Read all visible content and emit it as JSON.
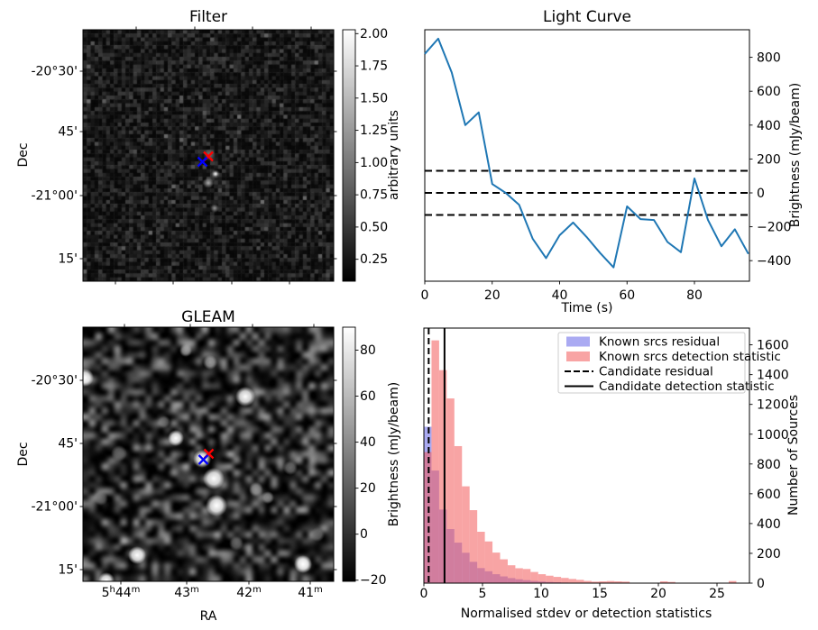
{
  "figure": {
    "kind": "matplotlib-figure",
    "background": "#ffffff"
  },
  "chart_data": [
    {
      "id": "filter",
      "type": "heatmap",
      "title": "Filter",
      "xlabel": "",
      "ylabel": "Dec",
      "ytick_labels": [
        "-20°30'",
        "45'",
        "-21°00'",
        "15'"
      ],
      "colorbar": {
        "label": "arbitrary units",
        "tick_labels": [
          "2.00",
          "1.75",
          "1.50",
          "1.25",
          "1.00",
          "0.75",
          "0.50",
          "0.25"
        ],
        "tick_values": [
          2.0,
          1.75,
          1.5,
          1.25,
          1.0,
          0.75,
          0.5,
          0.25
        ],
        "cmap": "gray",
        "range": [
          0.08,
          2.03
        ]
      },
      "markers": [
        {
          "name": "candidate-position",
          "shape": "x",
          "color": "#ff0000"
        },
        {
          "name": "known-source-position",
          "shape": "x",
          "color": "#0000ff"
        }
      ],
      "content": "noisy pixelated grayscale image, mostly dark, faint compact sources just below centre"
    },
    {
      "id": "light-curve",
      "type": "line",
      "title": "Light Curve",
      "xlabel": "Time (s)",
      "ylabel": "Brightness (mJy/beam)",
      "line_color": "#1f77b4",
      "x": [
        0,
        4,
        8,
        12,
        16,
        20,
        24,
        28,
        32,
        36,
        40,
        44,
        48,
        52,
        56,
        60,
        64,
        68,
        72,
        76,
        80,
        84,
        88,
        92,
        96
      ],
      "y": [
        820,
        910,
        710,
        400,
        475,
        52,
        0,
        -70,
        -270,
        -385,
        -250,
        -175,
        -260,
        -355,
        -440,
        -80,
        -155,
        -160,
        -290,
        -350,
        85,
        -160,
        -315,
        -215,
        -360
      ],
      "threshold_lines": [
        130,
        0,
        -130
      ],
      "threshold_style": "dashed black",
      "xtick_labels": [
        "0",
        "20",
        "40",
        "60",
        "80"
      ],
      "xtick_values": [
        0,
        20,
        40,
        60,
        80
      ],
      "ytick_labels": [
        "800",
        "600",
        "400",
        "200",
        "0",
        "−200",
        "−400"
      ],
      "ytick_values": [
        800,
        600,
        400,
        200,
        0,
        -200,
        -400
      ],
      "xlim": [
        0,
        96.3
      ],
      "ylim": [
        -520,
        955
      ],
      "grid": false
    },
    {
      "id": "gleam",
      "type": "heatmap",
      "title": "GLEAM",
      "xlabel": "RA",
      "ylabel": "Dec",
      "ytick_labels": [
        "-20°30'",
        "45'",
        "-21°00'",
        "15'"
      ],
      "xtick_labels": [
        {
          "pre": "5",
          "presup": "h",
          "num": "44",
          "sup": "m"
        },
        {
          "num": "43",
          "sup": "m"
        },
        {
          "num": "42",
          "sup": "m"
        },
        {
          "num": "41",
          "sup": "m"
        }
      ],
      "colorbar": {
        "label": "Brightness (mJy/beam)",
        "tick_labels": [
          "80",
          "60",
          "40",
          "20",
          "0",
          "−20"
        ],
        "tick_values": [
          80,
          60,
          40,
          20,
          0,
          -20
        ],
        "cmap": "gray",
        "range": [
          -20.5,
          90
        ]
      },
      "markers": [
        {
          "name": "candidate-position",
          "shape": "x",
          "color": "#ff0000"
        },
        {
          "name": "known-source-position",
          "shape": "x",
          "color": "#0000ff"
        }
      ],
      "content": "smoothed grayscale sky image with several bright point sources along centre and corners"
    },
    {
      "id": "histogram",
      "type": "bar",
      "subtype": "histogram",
      "title": "",
      "xlabel": "Normalised stdev or detection statistics",
      "ylabel": "Number of Sources",
      "bin_start": 0,
      "bin_width": 0.65,
      "series": [
        {
          "name": "Known srcs residual",
          "color": "rgba(85,85,230,0.5)",
          "values": [
            1050,
            756,
            494,
            363,
            272,
            204,
            143,
            101,
            80,
            60,
            45,
            34,
            26,
            20,
            15,
            11,
            8,
            6,
            4,
            3,
            2,
            2,
            1,
            1,
            0,
            0,
            0,
            0,
            0,
            0,
            0,
            0,
            0,
            0,
            0,
            0,
            0,
            0,
            0,
            0,
            0,
            0,
            0
          ]
        },
        {
          "name": "Known srcs detection statistic",
          "color": "rgba(242,90,90,0.55)",
          "values": [
            880,
            1630,
            1430,
            1240,
            920,
            650,
            490,
            345,
            280,
            205,
            160,
            120,
            100,
            95,
            75,
            60,
            50,
            42,
            35,
            28,
            22,
            15,
            10,
            12,
            14,
            12,
            10,
            0,
            0,
            0,
            0,
            12,
            8,
            0,
            0,
            0,
            0,
            0,
            0,
            0,
            14,
            0,
            0
          ]
        }
      ],
      "vlines": [
        {
          "label": "Candidate residual",
          "style": "dashed",
          "x": 0.41,
          "color": "#000000"
        },
        {
          "label": "Candidate detection statistic",
          "style": "solid",
          "x": 1.76,
          "color": "#000000"
        }
      ],
      "xtick_labels": [
        "0",
        "5",
        "10",
        "15",
        "20",
        "25"
      ],
      "xtick_values": [
        0,
        5,
        10,
        15,
        20,
        25
      ],
      "ytick_labels": [
        "0",
        "200",
        "400",
        "600",
        "800",
        "1000",
        "1200",
        "1400",
        "1600"
      ],
      "ytick_values": [
        0,
        200,
        400,
        600,
        800,
        1000,
        1200,
        1400,
        1600
      ],
      "xlim": [
        0,
        27.8
      ],
      "ylim": [
        0,
        1712
      ],
      "legend_position": "upper center-right"
    }
  ]
}
